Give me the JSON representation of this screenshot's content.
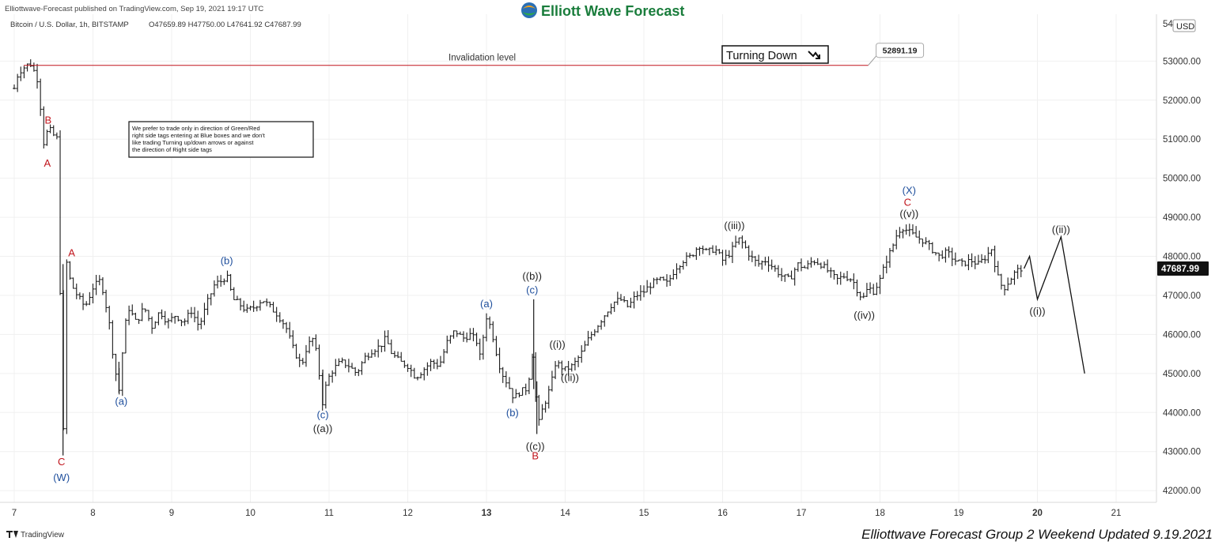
{
  "header": {
    "published": "Elliottwave-Forecast published on TradingView.com, Sep 19, 2021 19:17 UTC",
    "brand": "Elliott Wave Forecast",
    "symbol_line": "Bitcoin / U.S. Dollar, 1h, BITSTAMP",
    "ohlc": "O47659.89  H47750.00  L47641.92  C47687.99",
    "currency": "USD"
  },
  "footer": {
    "tv_logo": "TradingView",
    "update_note": "Elliottwave Forecast Group 2 Weekend Updated 9.19.2021"
  },
  "annotations": {
    "invalidation_label": "Invalidation level",
    "invalidation_price": "52891.19",
    "turning_label": "Turning Down",
    "note": [
      "We prefer to trade only in direction of Green/Red",
      "right side tags entering at Blue boxes and we don't",
      "like trading Turning up/down arrows or against",
      "the direction of Right side tags"
    ]
  },
  "colors": {
    "price_bars": "#1a1a1a",
    "red_label": "#c0141c",
    "blue_label": "#1e4e9c",
    "black_label": "#222222",
    "invalidation_line": "#c0141c",
    "axis_text": "#333333",
    "grid": "#f0f0f0",
    "brand_green": "#1a7d3c"
  },
  "chart_data": {
    "type": "ohlc-bar",
    "title": "Bitcoin / U.S. Dollar, 1h, BITSTAMP",
    "grid": true,
    "ylim": [
      41700,
      54200
    ],
    "y_ticks": [
      42000,
      43000,
      44000,
      45000,
      46000,
      47000,
      48000,
      49000,
      50000,
      51000,
      52000,
      53000
    ],
    "y_tick_labels": [
      "42000.00",
      "43000.00",
      "44000.00",
      "45000.00",
      "46000.00",
      "47000.00",
      "48000.00",
      "49000.00",
      "50000.00",
      "51000.00",
      "52000.00",
      "53000.00"
    ],
    "y_top_partial_label": "54",
    "last_price": 47687.99,
    "last_price_label": "47687.99",
    "x_range": [
      7.0,
      21.45
    ],
    "x_ticks": [
      7,
      8,
      9,
      10,
      11,
      12,
      13,
      14,
      15,
      16,
      17,
      18,
      19,
      20,
      21
    ],
    "x_tick_labels": [
      "7",
      "8",
      "9",
      "10",
      "11",
      "12",
      "13",
      "14",
      "15",
      "16",
      "17",
      "18",
      "19",
      "20",
      "21"
    ],
    "bold_ticks": [
      "13",
      "20"
    ],
    "price_path": [
      [
        7.0,
        52300
      ],
      [
        7.05,
        52700
      ],
      [
        7.1,
        52800
      ],
      [
        7.2,
        52950
      ],
      [
        7.25,
        52750
      ],
      [
        7.3,
        52500
      ],
      [
        7.33,
        51900
      ],
      [
        7.38,
        50800
      ],
      [
        7.43,
        51300
      ],
      [
        7.5,
        51100
      ],
      [
        7.55,
        51000
      ],
      [
        7.58,
        47500
      ],
      [
        7.62,
        42900
      ],
      [
        7.66,
        47900
      ],
      [
        7.72,
        47300
      ],
      [
        7.8,
        47000
      ],
      [
        7.9,
        46700
      ],
      [
        8.0,
        47200
      ],
      [
        8.1,
        47400
      ],
      [
        8.15,
        46900
      ],
      [
        8.2,
        46400
      ],
      [
        8.26,
        45400
      ],
      [
        8.33,
        44500
      ],
      [
        8.4,
        46100
      ],
      [
        8.45,
        46700
      ],
      [
        8.55,
        46300
      ],
      [
        8.65,
        46700
      ],
      [
        8.75,
        46200
      ],
      [
        8.85,
        46600
      ],
      [
        8.95,
        46300
      ],
      [
        9.05,
        46500
      ],
      [
        9.15,
        46300
      ],
      [
        9.25,
        46600
      ],
      [
        9.35,
        46200
      ],
      [
        9.45,
        46800
      ],
      [
        9.55,
        47300
      ],
      [
        9.62,
        47350
      ],
      [
        9.7,
        47500
      ],
      [
        9.78,
        46900
      ],
      [
        9.85,
        46800
      ],
      [
        9.95,
        46600
      ],
      [
        10.05,
        46700
      ],
      [
        10.15,
        46900
      ],
      [
        10.25,
        46700
      ],
      [
        10.35,
        46500
      ],
      [
        10.45,
        46200
      ],
      [
        10.55,
        45600
      ],
      [
        10.65,
        45200
      ],
      [
        10.72,
        45700
      ],
      [
        10.8,
        45900
      ],
      [
        10.85,
        45400
      ],
      [
        10.92,
        44200
      ],
      [
        10.97,
        44800
      ],
      [
        11.05,
        45100
      ],
      [
        11.15,
        45300
      ],
      [
        11.25,
        45200
      ],
      [
        11.35,
        45000
      ],
      [
        11.45,
        45400
      ],
      [
        11.55,
        45600
      ],
      [
        11.65,
        45700
      ],
      [
        11.72,
        45900
      ],
      [
        11.8,
        45500
      ],
      [
        11.9,
        45300
      ],
      [
        12.0,
        45200
      ],
      [
        12.1,
        44900
      ],
      [
        12.2,
        45100
      ],
      [
        12.3,
        45300
      ],
      [
        12.4,
        45200
      ],
      [
        12.5,
        45800
      ],
      [
        12.6,
        46100
      ],
      [
        12.7,
        45900
      ],
      [
        12.8,
        46000
      ],
      [
        12.88,
        45800
      ],
      [
        12.93,
        45300
      ],
      [
        12.97,
        46200
      ],
      [
        13.0,
        46450
      ],
      [
        13.05,
        46200
      ],
      [
        13.1,
        45800
      ],
      [
        13.15,
        45300
      ],
      [
        13.2,
        45000
      ],
      [
        13.3,
        44600
      ],
      [
        13.35,
        44350
      ],
      [
        13.4,
        44500
      ],
      [
        13.5,
        44600
      ],
      [
        13.58,
        45200
      ],
      [
        13.6,
        46900
      ],
      [
        13.62,
        44700
      ],
      [
        13.64,
        43450
      ],
      [
        13.68,
        43900
      ],
      [
        13.75,
        44300
      ],
      [
        13.82,
        44700
      ],
      [
        13.88,
        45300
      ],
      [
        13.93,
        45200
      ],
      [
        14.0,
        45100
      ],
      [
        14.1,
        45200
      ],
      [
        14.2,
        45500
      ],
      [
        14.3,
        45900
      ],
      [
        14.4,
        46200
      ],
      [
        14.5,
        46500
      ],
      [
        14.6,
        46800
      ],
      [
        14.7,
        46900
      ],
      [
        14.8,
        46700
      ],
      [
        14.9,
        47000
      ],
      [
        15.0,
        47100
      ],
      [
        15.1,
        47300
      ],
      [
        15.2,
        47400
      ],
      [
        15.3,
        47300
      ],
      [
        15.4,
        47700
      ],
      [
        15.5,
        47900
      ],
      [
        15.6,
        48000
      ],
      [
        15.7,
        48300
      ],
      [
        15.8,
        48100
      ],
      [
        15.9,
        48200
      ],
      [
        16.0,
        47900
      ],
      [
        16.1,
        48100
      ],
      [
        16.2,
        48450
      ],
      [
        16.27,
        48300
      ],
      [
        16.35,
        48000
      ],
      [
        16.45,
        47800
      ],
      [
        16.55,
        47900
      ],
      [
        16.65,
        47700
      ],
      [
        16.75,
        47500
      ],
      [
        16.85,
        47400
      ],
      [
        16.95,
        47800
      ],
      [
        17.05,
        47700
      ],
      [
        17.15,
        47900
      ],
      [
        17.25,
        47800
      ],
      [
        17.35,
        47600
      ],
      [
        17.45,
        47400
      ],
      [
        17.55,
        47500
      ],
      [
        17.65,
        47400
      ],
      [
        17.72,
        47100
      ],
      [
        17.78,
        46900
      ],
      [
        17.85,
        47200
      ],
      [
        17.92,
        47100
      ],
      [
        18.0,
        47400
      ],
      [
        18.08,
        47900
      ],
      [
        18.15,
        48200
      ],
      [
        18.22,
        48600
      ],
      [
        18.28,
        48750
      ],
      [
        18.35,
        48650
      ],
      [
        18.45,
        48500
      ],
      [
        18.55,
        48400
      ],
      [
        18.65,
        48200
      ],
      [
        18.75,
        48000
      ],
      [
        18.85,
        48100
      ],
      [
        18.95,
        47900
      ],
      [
        19.05,
        47800
      ],
      [
        19.15,
        47900
      ],
      [
        19.25,
        47800
      ],
      [
        19.35,
        48000
      ],
      [
        19.42,
        48200
      ],
      [
        19.47,
        47700
      ],
      [
        19.52,
        47300
      ],
      [
        19.58,
        47200
      ],
      [
        19.65,
        47400
      ],
      [
        19.72,
        47600
      ],
      [
        19.8,
        47700
      ]
    ],
    "projection": [
      [
        19.83,
        47687.99
      ],
      [
        19.9,
        48000
      ],
      [
        20.0,
        46900
      ],
      [
        20.3,
        48500
      ],
      [
        20.6,
        45000
      ]
    ],
    "invalidation": {
      "price": 52891.19,
      "x_start": 7.12,
      "x_end": 17.85
    },
    "wave_labels": [
      {
        "text": "B",
        "x": 7.43,
        "price": 51400,
        "color": "red"
      },
      {
        "text": "A",
        "x": 7.42,
        "price": 50300,
        "color": "red"
      },
      {
        "text": "A",
        "x": 7.73,
        "price": 48000,
        "color": "red"
      },
      {
        "text": "C",
        "x": 7.6,
        "price": 42650,
        "color": "red"
      },
      {
        "text": "(W)",
        "x": 7.6,
        "price": 42250,
        "color": "blue"
      },
      {
        "text": "(a)",
        "x": 8.36,
        "price": 44200,
        "color": "blue"
      },
      {
        "text": "(b)",
        "x": 9.7,
        "price": 47800,
        "color": "blue"
      },
      {
        "text": "(c)",
        "x": 10.92,
        "price": 43850,
        "color": "blue"
      },
      {
        "text": "((a))",
        "x": 10.92,
        "price": 43500,
        "color": "black"
      },
      {
        "text": "(a)",
        "x": 13.0,
        "price": 46700,
        "color": "blue"
      },
      {
        "text": "(b)",
        "x": 13.33,
        "price": 43900,
        "color": "blue"
      },
      {
        "text": "((b))",
        "x": 13.58,
        "price": 47400,
        "color": "black"
      },
      {
        "text": "(c)",
        "x": 13.58,
        "price": 47050,
        "color": "blue"
      },
      {
        "text": "((c))",
        "x": 13.62,
        "price": 43050,
        "color": "black"
      },
      {
        "text": "B",
        "x": 13.62,
        "price": 42800,
        "color": "red"
      },
      {
        "text": "((i))",
        "x": 13.9,
        "price": 45650,
        "color": "black"
      },
      {
        "text": "((ii))",
        "x": 14.06,
        "price": 44800,
        "color": "black"
      },
      {
        "text": "((iii))",
        "x": 16.15,
        "price": 48700,
        "color": "black"
      },
      {
        "text": "((iv))",
        "x": 17.8,
        "price": 46400,
        "color": "black"
      },
      {
        "text": "(X)",
        "x": 18.37,
        "price": 49600,
        "color": "blue"
      },
      {
        "text": "C",
        "x": 18.35,
        "price": 49300,
        "color": "red"
      },
      {
        "text": "((v))",
        "x": 18.37,
        "price": 49000,
        "color": "black"
      },
      {
        "text": "((i))",
        "x": 20.0,
        "price": 46500,
        "color": "black"
      },
      {
        "text": "((ii))",
        "x": 20.3,
        "price": 48600,
        "color": "black"
      }
    ]
  }
}
